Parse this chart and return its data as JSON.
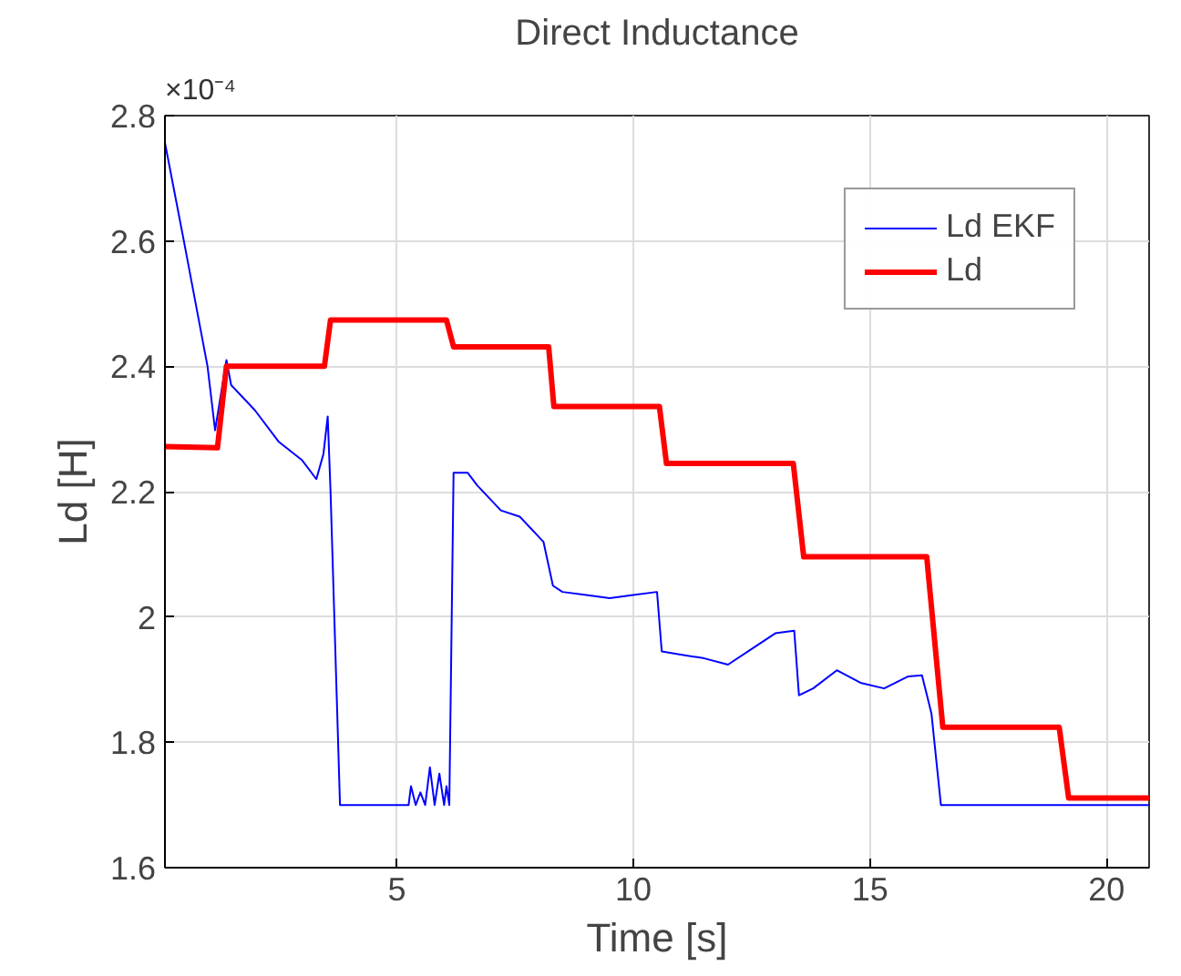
{
  "chart_data": {
    "type": "line",
    "title": "Direct Inductance",
    "xlabel": "Time [s]",
    "ylabel": "Ld [H]",
    "annotations": [
      "×10⁻⁴"
    ],
    "xlim": [
      0.1,
      20.9
    ],
    "ylim": [
      1.6,
      2.8
    ],
    "xticks": [
      5,
      10,
      15,
      20
    ],
    "yticks": [
      1.6,
      1.8,
      2,
      2.2,
      2.4,
      2.6,
      2.8
    ],
    "grid": true,
    "legend": "top right",
    "series": [
      {
        "name": "Ld EKF",
        "color": "#0000ff",
        "x": [
          0.1,
          0.5,
          1.0,
          1.16,
          1.4,
          1.5,
          2.0,
          2.5,
          3.0,
          3.3,
          3.45,
          3.54,
          3.6,
          3.8,
          5.25,
          5.3,
          5.4,
          5.5,
          5.6,
          5.7,
          5.8,
          5.9,
          6.0,
          6.05,
          6.11,
          6.2,
          6.5,
          6.7,
          7.2,
          7.6,
          8.1,
          8.3,
          8.5,
          9.0,
          9.5,
          10.0,
          10.5,
          10.6,
          11.0,
          11.5,
          12.0,
          12.6,
          13.0,
          13.4,
          13.5,
          13.8,
          14.3,
          14.8,
          15.3,
          15.8,
          16.1,
          16.3,
          16.5,
          20.9
        ],
        "values": [
          2.757,
          2.6,
          2.4,
          2.298,
          2.41,
          2.37,
          2.33,
          2.28,
          2.25,
          2.22,
          2.26,
          2.32,
          2.2,
          1.7,
          1.7,
          1.73,
          1.7,
          1.72,
          1.7,
          1.76,
          1.7,
          1.75,
          1.7,
          1.73,
          1.7,
          2.23,
          2.23,
          2.21,
          2.17,
          2.16,
          2.12,
          2.05,
          2.04,
          2.035,
          2.03,
          2.035,
          2.04,
          1.945,
          1.94,
          1.934,
          1.924,
          1.954,
          1.974,
          1.978,
          1.875,
          1.886,
          1.915,
          1.895,
          1.886,
          1.905,
          1.907,
          1.846,
          1.7,
          1.7
        ]
      },
      {
        "name": "Ld",
        "color": "#ff0000",
        "x": [
          0.1,
          1.21,
          1.4,
          3.47,
          3.6,
          6.05,
          6.2,
          8.21,
          8.32,
          10.55,
          10.7,
          13.38,
          13.6,
          16.2,
          16.54,
          19.0,
          19.2,
          20.9
        ],
        "values": [
          2.272,
          2.27,
          2.4,
          2.4,
          2.474,
          2.474,
          2.431,
          2.431,
          2.336,
          2.336,
          2.245,
          2.245,
          2.096,
          2.096,
          1.824,
          1.824,
          1.711,
          1.711
        ]
      }
    ]
  }
}
